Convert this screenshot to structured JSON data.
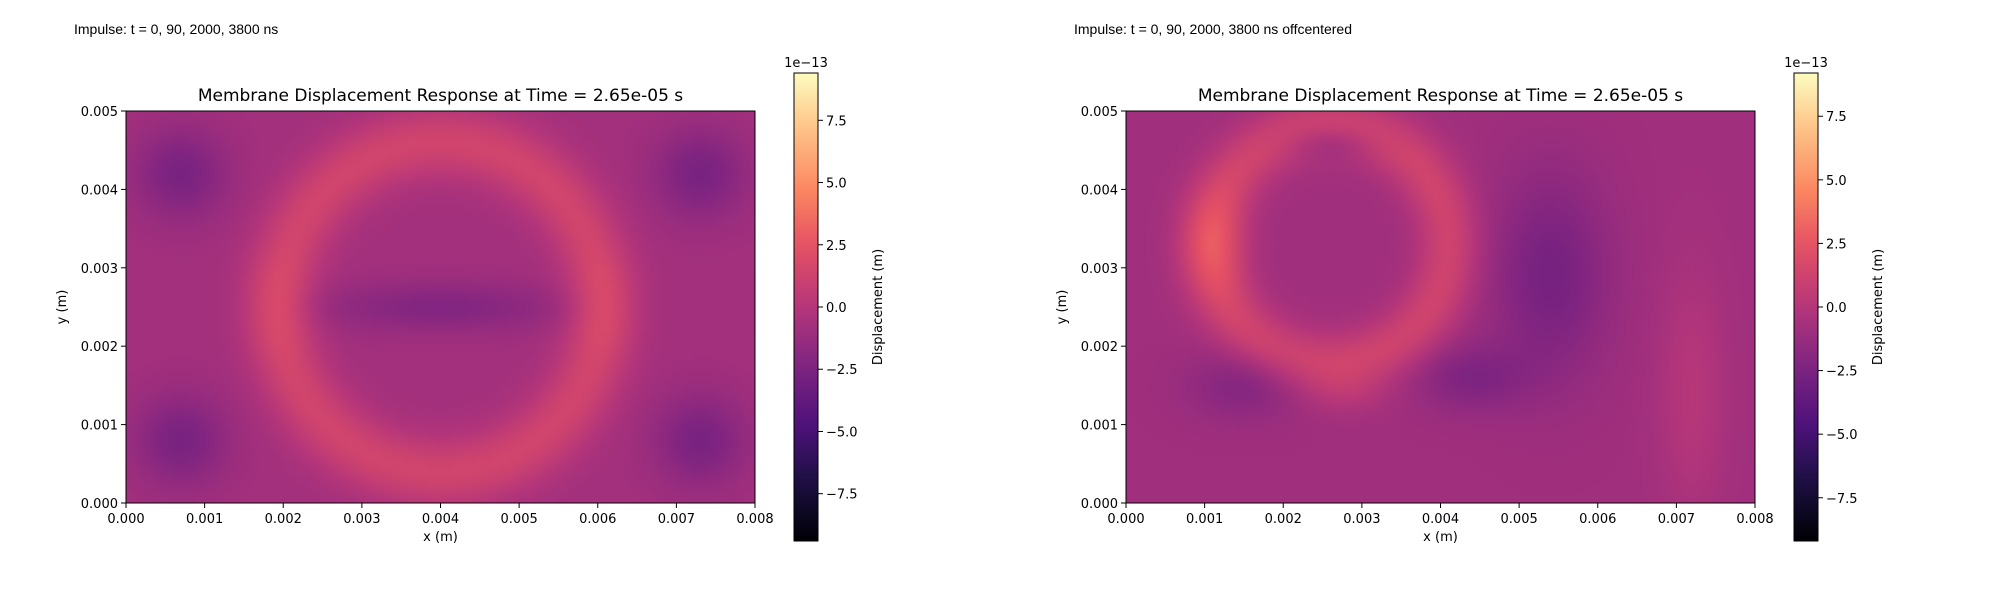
{
  "colormap": "magma",
  "chart_data": [
    {
      "type": "heatmap",
      "caption": "Impulse: t = 0, 90, 2000, 3800 ns",
      "title": "Membrane Displacement Response at Time = 2.65e-05 s",
      "xlabel": "x (m)",
      "ylabel": "y (m)",
      "xlim": [
        0,
        0.008
      ],
      "ylim": [
        0,
        0.005
      ],
      "xticks": [
        "0.000",
        "0.001",
        "0.002",
        "0.003",
        "0.004",
        "0.005",
        "0.006",
        "0.007",
        "0.008"
      ],
      "yticks": [
        "0.000",
        "0.001",
        "0.002",
        "0.003",
        "0.004",
        "0.005"
      ],
      "colorbar": {
        "label": "Displacement (m)",
        "offset": "1e−13",
        "vmin": -9.4,
        "vmax": 9.4,
        "ticks": [
          -7.5,
          -5.0,
          -2.5,
          0.0,
          2.5,
          5.0,
          7.5
        ],
        "tick_labels": [
          "−7.5",
          "−5.0",
          "−2.5",
          "0.0",
          "2.5",
          "5.0",
          "7.5"
        ]
      },
      "field": {
        "description_units": "displacement in units of 1e-13 m",
        "base": -0.8,
        "features": [
          {
            "kind": "ring",
            "cx": 0.004,
            "cy": 0.0025,
            "rx": 0.00205,
            "ry": 0.0021,
            "width": 0.00032,
            "amp": 2.2
          },
          {
            "kind": "blob",
            "cx": 0.004,
            "cy": 0.0025,
            "sx": 0.0011,
            "sy": 0.00022,
            "amp": -1.4
          },
          {
            "kind": "blob",
            "cx": 0.0007,
            "cy": 0.0042,
            "sx": 0.0004,
            "sy": 0.0004,
            "amp": -1.8
          },
          {
            "kind": "blob",
            "cx": 0.0073,
            "cy": 0.0042,
            "sx": 0.0004,
            "sy": 0.0004,
            "amp": -1.8
          },
          {
            "kind": "blob",
            "cx": 0.0007,
            "cy": 0.0008,
            "sx": 0.0004,
            "sy": 0.0004,
            "amp": -1.8
          },
          {
            "kind": "blob",
            "cx": 0.0073,
            "cy": 0.0008,
            "sx": 0.0004,
            "sy": 0.0004,
            "amp": -1.8
          },
          {
            "kind": "blob",
            "cx": 0.0019,
            "cy": 0.0025,
            "sx": 0.0003,
            "sy": 0.0004,
            "amp": 0.6
          },
          {
            "kind": "blob",
            "cx": 0.0061,
            "cy": 0.0025,
            "sx": 0.0003,
            "sy": 0.0004,
            "amp": 0.6
          }
        ]
      }
    },
    {
      "type": "heatmap",
      "caption": "Impulse: t = 0, 90, 2000, 3800 ns offcentered",
      "title": "Membrane Displacement Response at Time = 2.65e-05 s",
      "xlabel": "x (m)",
      "ylabel": "y (m)",
      "xlim": [
        0,
        0.008
      ],
      "ylim": [
        0,
        0.005
      ],
      "xticks": [
        "0.000",
        "0.001",
        "0.002",
        "0.003",
        "0.004",
        "0.005",
        "0.006",
        "0.007",
        "0.008"
      ],
      "yticks": [
        "0.000",
        "0.001",
        "0.002",
        "0.003",
        "0.004",
        "0.005"
      ],
      "colorbar": {
        "label": "Displacement (m)",
        "offset": "1e−13",
        "vmin": -9.2,
        "vmax": 9.2,
        "ticks": [
          -7.5,
          -5.0,
          -2.5,
          0.0,
          2.5,
          5.0,
          7.5
        ],
        "tick_labels": [
          "−7.5",
          "−5.0",
          "−2.5",
          "0.0",
          "2.5",
          "5.0",
          "7.5"
        ]
      },
      "field": {
        "description_units": "displacement in units of 1e-13 m",
        "base": -0.9,
        "features": [
          {
            "kind": "ring",
            "cx": 0.0026,
            "cy": 0.0033,
            "rx": 0.0015,
            "ry": 0.0015,
            "width": 0.00028,
            "amp": 2.2
          },
          {
            "kind": "blob",
            "cx": 0.0011,
            "cy": 0.0033,
            "sx": 0.0003,
            "sy": 0.0005,
            "amp": 1.6
          },
          {
            "kind": "blob",
            "cx": 0.0026,
            "cy": 0.0046,
            "sx": 0.0004,
            "sy": 0.00015,
            "amp": -1.2
          },
          {
            "kind": "blob",
            "cx": 0.0054,
            "cy": 0.0029,
            "sx": 0.0005,
            "sy": 0.0009,
            "amp": -1.8
          },
          {
            "kind": "blob",
            "cx": 0.0044,
            "cy": 0.0016,
            "sx": 0.0005,
            "sy": 0.0003,
            "amp": -1.4
          },
          {
            "kind": "blob",
            "cx": 0.0015,
            "cy": 0.0015,
            "sx": 0.0005,
            "sy": 0.0003,
            "amp": -1.2
          },
          {
            "kind": "blob",
            "cx": 0.0028,
            "cy": 0.0014,
            "sx": 0.0004,
            "sy": 0.0002,
            "amp": 0.7
          },
          {
            "kind": "blob",
            "cx": 0.0072,
            "cy": 0.0014,
            "sx": 0.0003,
            "sy": 0.0011,
            "amp": 1.0
          }
        ]
      }
    }
  ]
}
